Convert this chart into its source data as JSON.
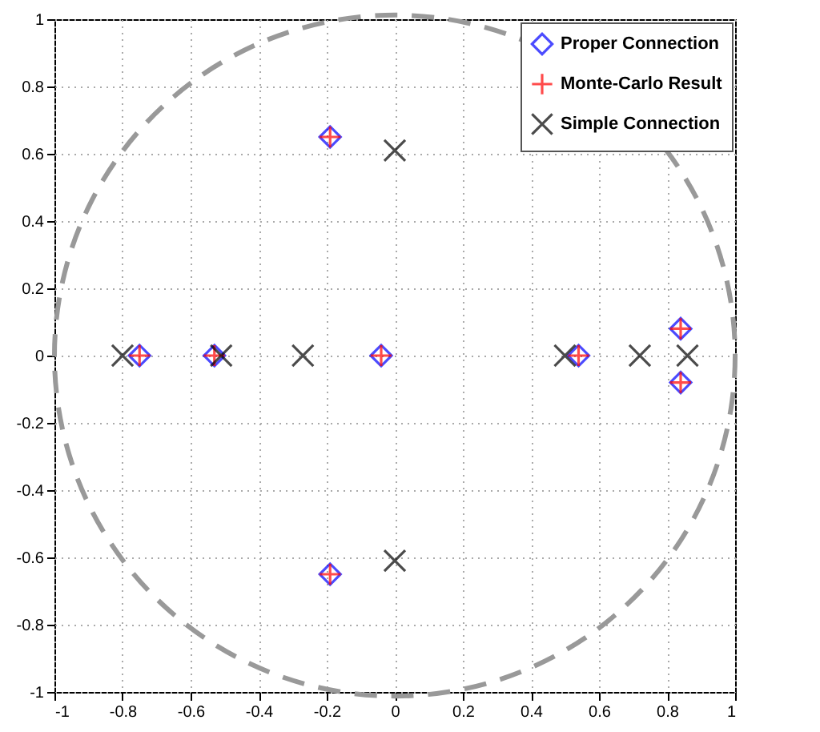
{
  "chart_data": {
    "type": "scatter",
    "xlim": [
      -1,
      1
    ],
    "ylim": [
      -1,
      1
    ],
    "xticks": [
      -1,
      -0.8,
      -0.6,
      -0.4,
      -0.2,
      0,
      0.2,
      0.4,
      0.6,
      0.8,
      1
    ],
    "yticks": [
      -1,
      -0.8,
      -0.6,
      -0.4,
      -0.2,
      0,
      0.2,
      0.4,
      0.6,
      0.8,
      1
    ],
    "grid": true,
    "legend": "top right",
    "series": [
      {
        "name": "Proper Connection",
        "color": "#0000ff",
        "marker": "diamond",
        "x": [
          -0.75,
          -0.53,
          -0.04,
          -0.19,
          -0.19,
          0.54,
          0.84,
          0.84
        ],
        "values": [
          0,
          0,
          0,
          0.65,
          -0.65,
          0,
          0.08,
          -0.08
        ]
      },
      {
        "name": "Monte-Carlo Result",
        "color": "#ff0000",
        "marker": "plus",
        "x": [
          -0.75,
          -0.53,
          -0.04,
          -0.19,
          -0.19,
          0.54,
          0.84,
          0.84
        ],
        "values": [
          0,
          0,
          0,
          0.65,
          -0.65,
          0,
          0.08,
          -0.08
        ]
      },
      {
        "name": "Simple Connection",
        "color": "#000000",
        "marker": "x",
        "x": [
          -0.8,
          -0.51,
          -0.27,
          0,
          0,
          0.5,
          0.72,
          0.86
        ],
        "values": [
          0,
          0,
          0,
          0.61,
          -0.61,
          0,
          0,
          0
        ]
      }
    ]
  }
}
